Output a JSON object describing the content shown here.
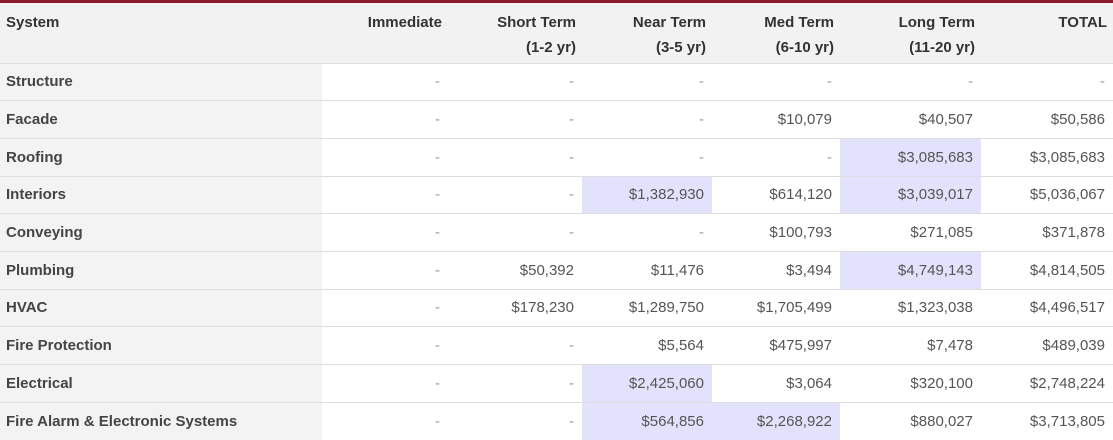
{
  "headers": {
    "system": "System",
    "immediate": "Immediate",
    "short_term": "Short Term",
    "short_term_range": "(1-2 yr)",
    "near_term": "Near Term",
    "near_term_range": "(3-5 yr)",
    "med_term": "Med Term",
    "med_term_range": "(6-10 yr)",
    "long_term": "Long Term",
    "long_term_range": "(11-20 yr)",
    "total": "TOTAL"
  },
  "highlight_color": "#e3e2fc",
  "rows": [
    {
      "system": "Structure",
      "immediate": "-",
      "short": "-",
      "near": "-",
      "med": "-",
      "long": "-",
      "total": "-",
      "highlight": []
    },
    {
      "system": "Facade",
      "immediate": "-",
      "short": "-",
      "near": "-",
      "med": "$10,079",
      "long": "$40,507",
      "total": "$50,586",
      "highlight": []
    },
    {
      "system": "Roofing",
      "immediate": "-",
      "short": "-",
      "near": "-",
      "med": "-",
      "long": "$3,085,683",
      "total": "$3,085,683",
      "highlight": [
        "long"
      ]
    },
    {
      "system": "Interiors",
      "immediate": "-",
      "short": "-",
      "near": "$1,382,930",
      "med": "$614,120",
      "long": "$3,039,017",
      "total": "$5,036,067",
      "highlight": [
        "near",
        "long"
      ]
    },
    {
      "system": "Conveying",
      "immediate": "-",
      "short": "-",
      "near": "-",
      "med": "$100,793",
      "long": "$271,085",
      "total": "$371,878",
      "highlight": []
    },
    {
      "system": "Plumbing",
      "immediate": "-",
      "short": "$50,392",
      "near": "$11,476",
      "med": "$3,494",
      "long": "$4,749,143",
      "total": "$4,814,505",
      "highlight": [
        "long"
      ]
    },
    {
      "system": "HVAC",
      "immediate": "-",
      "short": "$178,230",
      "near": "$1,289,750",
      "med": "$1,705,499",
      "long": "$1,323,038",
      "total": "$4,496,517",
      "highlight": []
    },
    {
      "system": "Fire Protection",
      "immediate": "-",
      "short": "-",
      "near": "$5,564",
      "med": "$475,997",
      "long": "$7,478",
      "total": "$489,039",
      "highlight": []
    },
    {
      "system": "Electrical",
      "immediate": "-",
      "short": "-",
      "near": "$2,425,060",
      "med": "$3,064",
      "long": "$320,100",
      "total": "$2,748,224",
      "highlight": [
        "near"
      ]
    },
    {
      "system": "Fire Alarm & Electronic Systems",
      "immediate": "-",
      "short": "-",
      "near": "$564,856",
      "med": "$2,268,922",
      "long": "$880,027",
      "total": "$3,713,805",
      "highlight": [
        "near",
        "med"
      ]
    }
  ]
}
